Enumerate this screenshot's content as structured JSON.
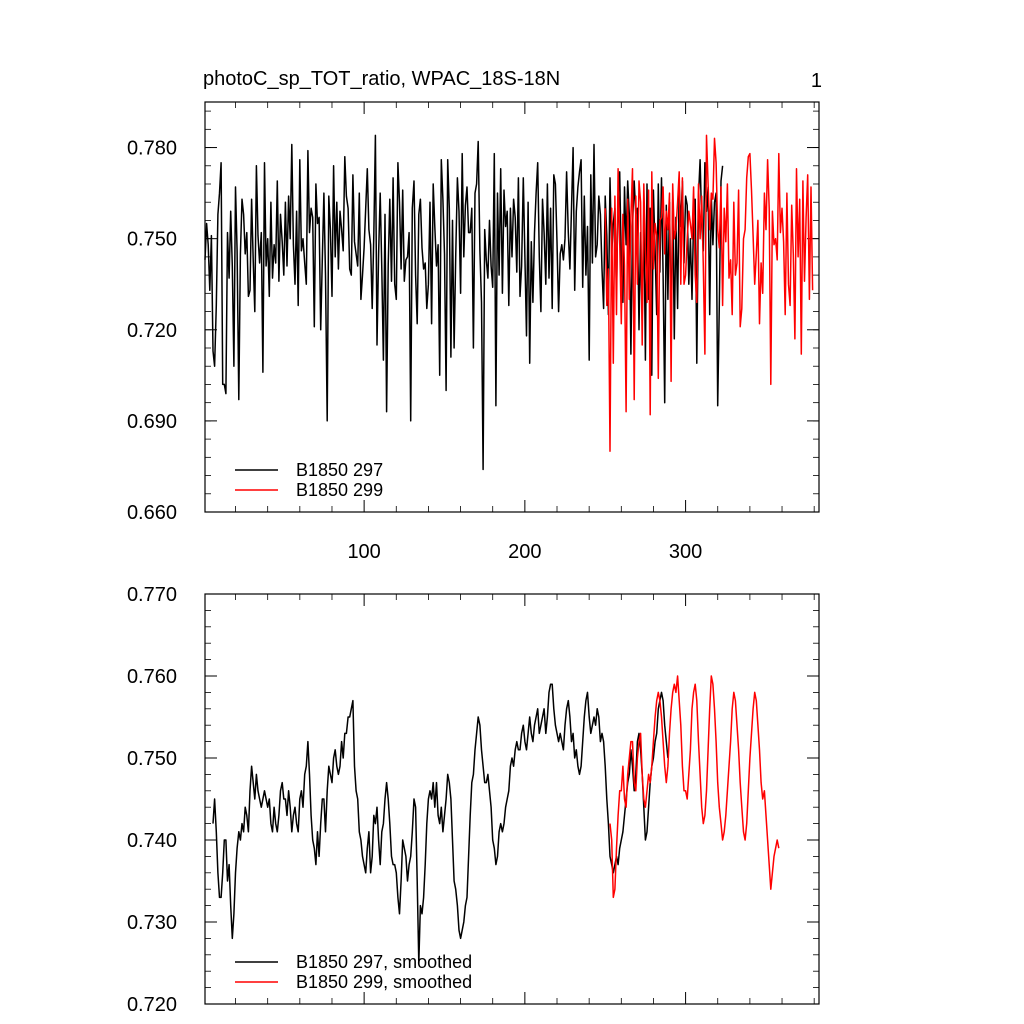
{
  "title_left": "photoC_sp_TOT_ratio, WPAC_18S-18N",
  "title_right": "1",
  "colors": {
    "series1": "#000000",
    "series2": "#ff0000"
  },
  "chart_data": [
    {
      "type": "line",
      "panel": "top",
      "xlim": [
        1,
        383
      ],
      "ylim": [
        0.66,
        0.795
      ],
      "yticks": [
        0.66,
        0.69,
        0.72,
        0.75,
        0.78
      ],
      "ytick_labels": [
        "0.660",
        "0.690",
        "0.720",
        "0.750",
        "0.780"
      ],
      "xticks": [
        100,
        200,
        300
      ],
      "xtick_labels": [
        "100",
        "200",
        "300"
      ],
      "xtick_labels_position": "bottom",
      "legend_placement": "bottom-left",
      "grid": false,
      "series": [
        {
          "name": "B1850 297",
          "color": "#000000",
          "x_start": 1,
          "values": [
            0.743,
            0.755,
            0.748,
            0.733,
            0.751,
            0.713,
            0.708,
            0.728,
            0.758,
            0.765,
            0.775,
            0.702,
            0.702,
            0.699,
            0.752,
            0.737,
            0.759,
            0.741,
            0.708,
            0.767,
            0.746,
            0.697,
            0.745,
            0.763,
            0.758,
            0.745,
            0.752,
            0.731,
            0.733,
            0.763,
            0.743,
            0.726,
            0.774,
            0.751,
            0.742,
            0.752,
            0.706,
            0.775,
            0.741,
            0.75,
            0.731,
            0.762,
            0.737,
            0.748,
            0.742,
            0.769,
            0.736,
            0.758,
            0.749,
            0.738,
            0.762,
            0.741,
            0.764,
            0.75,
            0.781,
            0.748,
            0.735,
            0.759,
            0.728,
            0.776,
            0.746,
            0.75,
            0.742,
            0.735,
            0.779,
            0.752,
            0.76,
            0.757,
            0.721,
            0.768,
            0.755,
            0.757,
            0.72,
            0.743,
            0.765,
            0.738,
            0.69,
            0.764,
            0.753,
            0.731,
            0.774,
            0.744,
            0.762,
            0.74,
            0.759,
            0.753,
            0.746,
            0.777,
            0.764,
            0.76,
            0.74,
            0.738,
            0.771,
            0.749,
            0.745,
            0.741,
            0.765,
            0.73,
            0.738,
            0.747,
            0.76,
            0.773,
            0.753,
            0.748,
            0.727,
            0.751,
            0.784,
            0.715,
            0.745,
            0.765,
            0.74,
            0.71,
            0.758,
            0.693,
            0.741,
            0.763,
            0.736,
            0.77,
            0.735,
            0.73,
            0.775,
            0.762,
            0.74,
            0.766,
            0.736,
            0.743,
            0.744,
            0.752,
            0.69,
            0.76,
            0.769,
            0.738,
            0.722,
            0.758,
            0.763,
            0.747,
            0.74,
            0.742,
            0.727,
            0.735,
            0.762,
            0.722,
            0.768,
            0.754,
            0.741,
            0.748,
            0.705,
            0.776,
            0.763,
            0.745,
            0.7,
            0.776,
            0.76,
            0.711,
            0.756,
            0.714,
            0.744,
            0.77,
            0.759,
            0.732,
            0.778,
            0.744,
            0.761,
            0.767,
            0.752,
            0.752,
            0.76,
            0.714,
            0.765,
            0.768,
            0.782,
            0.746,
            0.729,
            0.674,
            0.753,
            0.743,
            0.737,
            0.756,
            0.741,
            0.734,
            0.778,
            0.695,
            0.765,
            0.738,
            0.773,
            0.732,
            0.766,
            0.754,
            0.759,
            0.728,
            0.76,
            0.744,
            0.763,
            0.757,
            0.739,
            0.77,
            0.731,
            0.741,
            0.77,
            0.744,
            0.718,
            0.762,
            0.709,
            0.749,
            0.729,
            0.752,
            0.765,
            0.775,
            0.744,
            0.726,
            0.763,
            0.752,
            0.735,
            0.768,
            0.737,
            0.76,
            0.727,
            0.771,
            0.768,
            0.749,
            0.726,
            0.745,
            0.748,
            0.743,
            0.75,
            0.772,
            0.752,
            0.74,
            0.76,
            0.78,
            0.733,
            0.759,
            0.767,
            0.772,
            0.776,
            0.734,
            0.764,
            0.738,
            0.754,
            0.71,
            0.771,
            0.742,
            0.781,
            0.744,
            0.748,
            0.764,
            0.758,
            0.74,
            0.727,
            0.764,
            0.751,
            0.725,
            0.77,
            0.745,
            0.755,
            0.76,
            0.732,
            0.764,
            0.772,
            0.741,
            0.729,
            0.767,
            0.748,
            0.769,
            0.758,
            0.712,
            0.754,
            0.769,
            0.758,
            0.76,
            0.72,
            0.752,
            0.723,
            0.759,
            0.71,
            0.768,
            0.73,
            0.76,
            0.705,
            0.766,
            0.746,
            0.725,
            0.768,
            0.739,
            0.77,
            0.738,
            0.696,
            0.761,
            0.73,
            0.762,
            0.719,
            0.763,
            0.717,
            0.757,
            0.727,
            0.768,
            0.754,
            0.769,
            0.742,
            0.764,
            0.761,
            0.735,
            0.75,
            0.73,
            0.757,
            0.763,
            0.709,
            0.764,
            0.776,
            0.755,
            0.746,
            0.775,
            0.759,
            0.767,
            0.725,
            0.764,
            0.748,
            0.762,
            0.765,
            0.695,
            0.728,
            0.769,
            0.774
          ]
        },
        {
          "name": "B1850 299",
          "color": "#ff0000",
          "x_start": 250,
          "values": [
            0.76,
            0.728,
            0.74,
            0.68,
            0.76,
            0.709,
            0.764,
            0.725,
            0.773,
            0.749,
            0.722,
            0.758,
            0.741,
            0.693,
            0.763,
            0.73,
            0.757,
            0.773,
            0.697,
            0.764,
            0.735,
            0.769,
            0.762,
            0.715,
            0.768,
            0.746,
            0.729,
            0.766,
            0.692,
            0.772,
            0.74,
            0.755,
            0.751,
            0.704,
            0.756,
            0.757,
            0.767,
            0.745,
            0.759,
            0.753,
            0.765,
            0.703,
            0.768,
            0.75,
            0.753,
            0.762,
            0.772,
            0.735,
            0.77,
            0.735,
            0.738,
            0.75,
            0.759,
            0.755,
            0.75,
            0.767,
            0.738,
            0.729,
            0.768,
            0.75,
            0.764,
            0.741,
            0.712,
            0.784,
            0.768,
            0.753,
            0.765,
            0.763,
            0.783,
            0.775,
            0.753,
            0.747,
            0.767,
            0.728,
            0.76,
            0.749,
            0.768,
            0.737,
            0.743,
            0.725,
            0.762,
            0.738,
            0.742,
            0.766,
            0.721,
            0.727,
            0.75,
            0.753,
            0.77,
            0.777,
            0.778,
            0.766,
            0.751,
            0.735,
            0.745,
            0.756,
            0.722,
            0.742,
            0.732,
            0.765,
            0.753,
            0.776,
            0.76,
            0.702,
            0.759,
            0.748,
            0.75,
            0.743,
            0.778,
            0.752,
            0.76,
            0.749,
            0.725,
            0.765,
            0.735,
            0.728,
            0.761,
            0.745,
            0.717,
            0.773,
            0.744,
            0.763,
            0.712,
            0.769,
            0.736,
            0.757,
            0.771,
            0.73,
            0.767,
            0.733
          ]
        }
      ]
    },
    {
      "type": "line",
      "panel": "bottom",
      "xlim": [
        1,
        383
      ],
      "ylim": [
        0.72,
        0.77
      ],
      "yticks": [
        0.72,
        0.73,
        0.74,
        0.75,
        0.76,
        0.77
      ],
      "ytick_labels": [
        "0.720",
        "0.730",
        "0.740",
        "0.750",
        "0.760",
        "0.770"
      ],
      "xticks": [
        100,
        200,
        300
      ],
      "xtick_labels": [],
      "legend_placement": "bottom-left",
      "grid": false,
      "series": [
        {
          "name": "B1850 297, smoothed",
          "color": "#000000",
          "x_start": 6,
          "values": [
            0.742,
            0.745,
            0.741,
            0.736,
            0.733,
            0.733,
            0.736,
            0.74,
            0.74,
            0.735,
            0.737,
            0.732,
            0.728,
            0.731,
            0.736,
            0.739,
            0.741,
            0.74,
            0.742,
            0.741,
            0.744,
            0.743,
            0.741,
            0.746,
            0.749,
            0.747,
            0.745,
            0.748,
            0.746,
            0.745,
            0.744,
            0.745,
            0.746,
            0.745,
            0.744,
            0.745,
            0.742,
            0.741,
            0.744,
            0.742,
            0.741,
            0.743,
            0.746,
            0.747,
            0.745,
            0.745,
            0.743,
            0.746,
            0.744,
            0.741,
            0.743,
            0.744,
            0.742,
            0.741,
            0.745,
            0.746,
            0.744,
            0.748,
            0.749,
            0.752,
            0.748,
            0.743,
            0.74,
            0.739,
            0.737,
            0.741,
            0.738,
            0.742,
            0.745,
            0.745,
            0.741,
            0.746,
            0.749,
            0.748,
            0.747,
            0.75,
            0.751,
            0.749,
            0.748,
            0.749,
            0.752,
            0.75,
            0.753,
            0.753,
            0.755,
            0.755,
            0.756,
            0.757,
            0.749,
            0.746,
            0.745,
            0.741,
            0.74,
            0.738,
            0.737,
            0.736,
            0.739,
            0.741,
            0.736,
            0.738,
            0.743,
            0.742,
            0.744,
            0.74,
            0.737,
            0.741,
            0.742,
            0.745,
            0.747,
            0.745,
            0.742,
            0.738,
            0.737,
            0.737,
            0.736,
            0.733,
            0.731,
            0.735,
            0.74,
            0.739,
            0.738,
            0.735,
            0.737,
            0.738,
            0.741,
            0.745,
            0.744,
            0.735,
            0.725,
            0.732,
            0.731,
            0.733,
            0.737,
            0.742,
            0.745,
            0.746,
            0.745,
            0.747,
            0.744,
            0.747,
            0.743,
            0.742,
            0.744,
            0.741,
            0.743,
            0.745,
            0.748,
            0.747,
            0.745,
            0.74,
            0.735,
            0.734,
            0.732,
            0.729,
            0.728,
            0.729,
            0.73,
            0.732,
            0.733,
            0.738,
            0.743,
            0.747,
            0.748,
            0.751,
            0.753,
            0.755,
            0.754,
            0.751,
            0.749,
            0.747,
            0.747,
            0.748,
            0.746,
            0.744,
            0.74,
            0.739,
            0.737,
            0.738,
            0.741,
            0.742,
            0.741,
            0.742,
            0.744,
            0.745,
            0.746,
            0.749,
            0.75,
            0.749,
            0.751,
            0.752,
            0.751,
            0.751,
            0.753,
            0.754,
            0.752,
            0.751,
            0.753,
            0.755,
            0.753,
            0.752,
            0.754,
            0.755,
            0.756,
            0.753,
            0.754,
            0.755,
            0.756,
            0.753,
            0.755,
            0.758,
            0.759,
            0.759,
            0.756,
            0.754,
            0.753,
            0.752,
            0.753,
            0.752,
            0.751,
            0.754,
            0.756,
            0.757,
            0.755,
            0.752,
            0.753,
            0.75,
            0.751,
            0.749,
            0.748,
            0.749,
            0.752,
            0.755,
            0.757,
            0.758,
            0.755,
            0.753,
            0.754,
            0.755,
            0.754,
            0.756,
            0.755,
            0.752,
            0.753,
            0.752,
            0.749,
            0.745,
            0.742,
            0.738,
            0.737,
            0.736,
            0.737,
            0.738,
            0.737,
            0.739,
            0.74,
            0.741,
            0.743,
            0.745,
            0.747,
            0.748,
            0.751,
            0.749,
            0.746,
            0.748,
            0.752,
            0.753,
            0.751,
            0.748,
            0.744,
            0.74,
            0.741,
            0.744,
            0.747,
            0.749,
            0.75,
            0.752,
            0.753,
            0.756,
            0.757,
            0.758,
            0.757,
            0.754,
            0.752,
            0.75
          ]
        },
        {
          "name": "B1850 299, smoothed",
          "color": "#ff0000",
          "x_start": 253,
          "values": [
            0.742,
            0.74,
            0.733,
            0.734,
            0.739,
            0.743,
            0.746,
            0.746,
            0.749,
            0.745,
            0.744,
            0.748,
            0.75,
            0.752,
            0.752,
            0.747,
            0.746,
            0.75,
            0.752,
            0.753,
            0.748,
            0.745,
            0.744,
            0.746,
            0.748,
            0.747,
            0.749,
            0.752,
            0.755,
            0.757,
            0.758,
            0.757,
            0.755,
            0.752,
            0.749,
            0.747,
            0.749,
            0.753,
            0.756,
            0.758,
            0.759,
            0.758,
            0.76,
            0.757,
            0.754,
            0.749,
            0.746,
            0.746,
            0.745,
            0.748,
            0.751,
            0.756,
            0.758,
            0.759,
            0.757,
            0.752,
            0.748,
            0.744,
            0.742,
            0.743,
            0.746,
            0.751,
            0.756,
            0.76,
            0.759,
            0.756,
            0.752,
            0.747,
            0.744,
            0.742,
            0.74,
            0.741,
            0.743,
            0.746,
            0.749,
            0.752,
            0.756,
            0.758,
            0.757,
            0.754,
            0.751,
            0.747,
            0.744,
            0.741,
            0.74,
            0.742,
            0.746,
            0.75,
            0.753,
            0.756,
            0.758,
            0.757,
            0.754,
            0.751,
            0.747,
            0.745,
            0.746,
            0.743,
            0.74,
            0.737,
            0.734,
            0.736,
            0.738,
            0.739,
            0.74,
            0.739
          ]
        }
      ]
    }
  ]
}
